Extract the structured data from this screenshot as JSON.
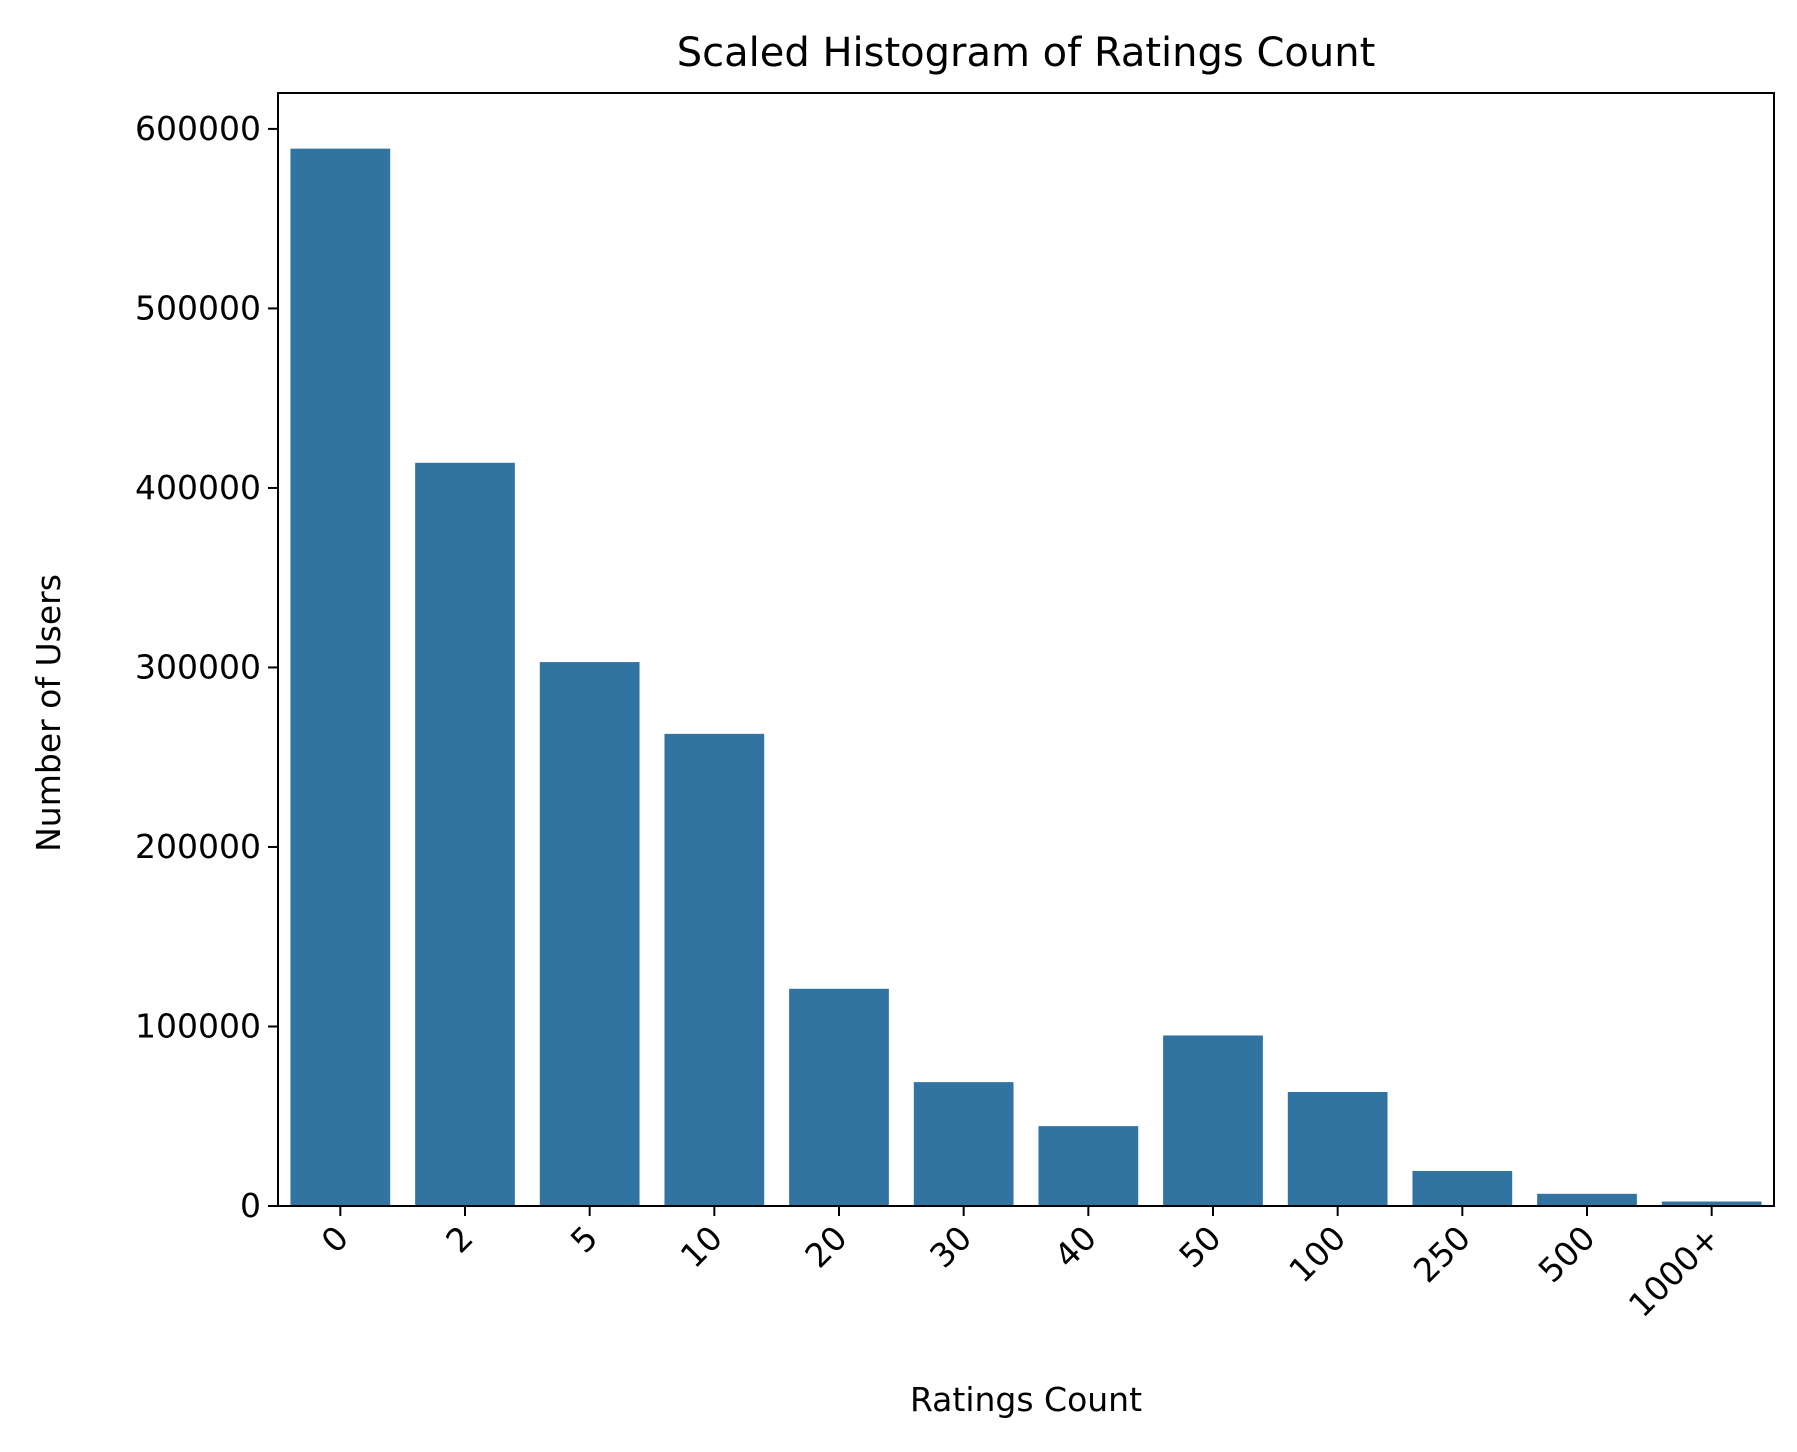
{
  "chart_data": {
    "type": "bar",
    "title": "Scaled Histogram of Ratings Count",
    "xlabel": "Ratings Count",
    "ylabel": "Number of Users",
    "categories": [
      "0",
      "2",
      "5",
      "10",
      "20",
      "30",
      "40",
      "50",
      "100",
      "250",
      "500",
      "1000+"
    ],
    "values": [
      589000,
      414000,
      303000,
      263000,
      121000,
      69000,
      44500,
      95000,
      63500,
      19500,
      6800,
      2500
    ],
    "ylim": [
      0,
      620000
    ],
    "yticks": [
      0,
      100000,
      200000,
      300000,
      400000,
      500000,
      600000
    ],
    "ytick_labels": [
      "0",
      "100000",
      "200000",
      "300000",
      "400000",
      "500000",
      "600000"
    ],
    "bar_color": "#3274a1",
    "grid": false,
    "legend": "none",
    "xtick_rotation_deg": -45
  }
}
